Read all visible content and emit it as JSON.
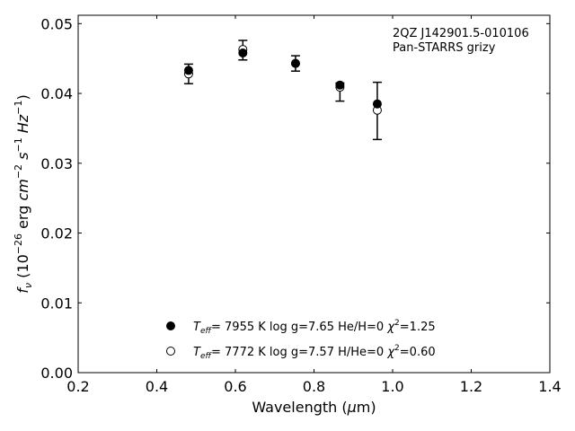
{
  "chart_data": {
    "type": "scatter",
    "xlabel": "Wavelength (μm)",
    "ylabel": "f_ν (10^-26 erg cm^-2 s^-1 Hz^-1)",
    "xlim": [
      0.2,
      1.4
    ],
    "ylim": [
      0.0,
      0.0512
    ],
    "xticks": [
      0.2,
      0.4,
      0.6,
      0.8,
      1.0,
      1.2,
      1.4
    ],
    "xtick_labels": [
      "0.2",
      "0.4",
      "0.6",
      "0.8",
      "1.0",
      "1.2",
      "1.4"
    ],
    "yticks": [
      0.0,
      0.01,
      0.02,
      0.03,
      0.04,
      0.05
    ],
    "ytick_labels": [
      "0.00",
      "0.01",
      "0.02",
      "0.03",
      "0.04",
      "0.05"
    ],
    "grid": false,
    "legend_position": "bottom-center",
    "annotation": {
      "line1": "2QZ J142901.5-010106",
      "line2": "Pan-STARRS grizy"
    },
    "observed": {
      "x": [
        0.481,
        0.619,
        0.753,
        0.866,
        0.961
      ],
      "y": [
        0.0428,
        0.0462,
        0.0443,
        0.0402,
        0.0375
      ],
      "yerr": [
        0.0014,
        0.0014,
        0.0011,
        0.0013,
        0.0041
      ]
    },
    "series": [
      {
        "marker": "filled",
        "legend_teff": "7955 K",
        "legend_logg": "log g=7.65",
        "legend_comp": "He/H=0",
        "legend_chi2": "=1.25",
        "x": [
          0.481,
          0.619,
          0.753,
          0.866,
          0.961
        ],
        "y": [
          0.0433,
          0.0458,
          0.0443,
          0.0412,
          0.0385
        ]
      },
      {
        "marker": "open",
        "legend_teff": "7772 K",
        "legend_logg": "log g=7.57",
        "legend_comp": "H/He=0",
        "legend_chi2": "=0.60",
        "x": [
          0.481,
          0.619,
          0.753,
          0.866,
          0.961
        ],
        "y": [
          0.0428,
          0.0463,
          0.0443,
          0.0409,
          0.0376
        ]
      }
    ]
  }
}
